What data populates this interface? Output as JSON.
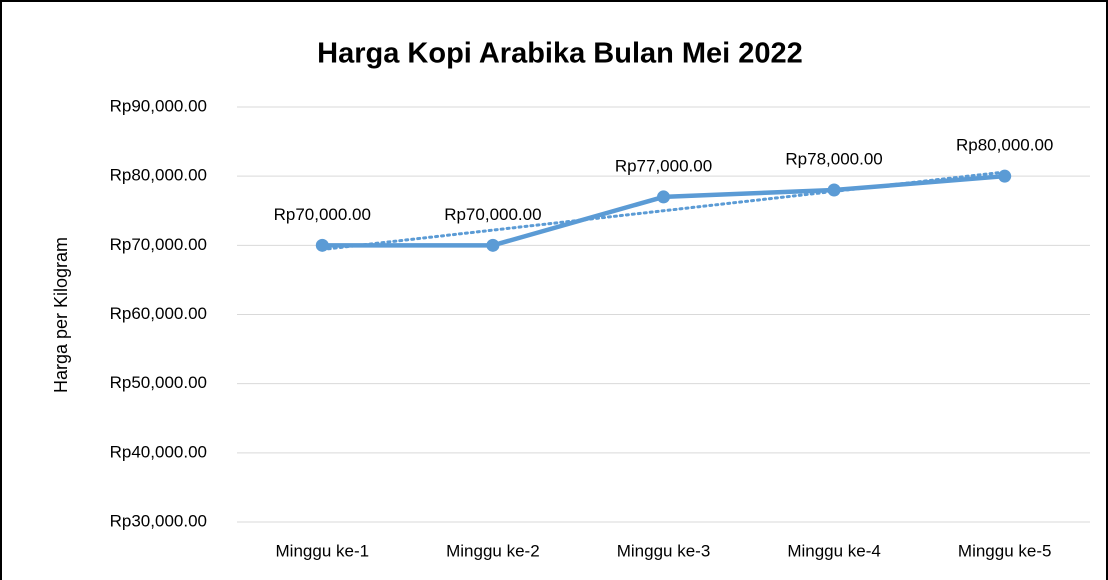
{
  "chart_data": {
    "type": "line",
    "title": "Harga Kopi Arabika Bulan Mei 2022",
    "y_label": "Harga per Kilogram",
    "categories": [
      "Minggu ke-1",
      "Minggu ke-2",
      "Minggu ke-3",
      "Minggu ke-4",
      "Minggu ke-5"
    ],
    "values": [
      70000,
      70000,
      77000,
      78000,
      80000
    ],
    "value_labels": [
      "Rp70,000.00",
      "Rp70,000.00",
      "Rp77,000.00",
      "Rp78,000.00",
      "Rp80,000.00"
    ],
    "color": "#5b9bd5",
    "ylim": [
      30000,
      90000
    ],
    "yticks": [
      {
        "value": 30000,
        "label": "Rp30,000.00"
      },
      {
        "value": 40000,
        "label": "Rp40,000.00"
      },
      {
        "value": 50000,
        "label": "Rp50,000.00"
      },
      {
        "value": 60000,
        "label": "Rp60,000.00"
      },
      {
        "value": 70000,
        "label": "Rp70,000.00"
      },
      {
        "value": 80000,
        "label": "Rp80,000.00"
      },
      {
        "value": 90000,
        "label": "Rp90,000.00"
      }
    ],
    "grid": true,
    "trendline": "linear"
  }
}
